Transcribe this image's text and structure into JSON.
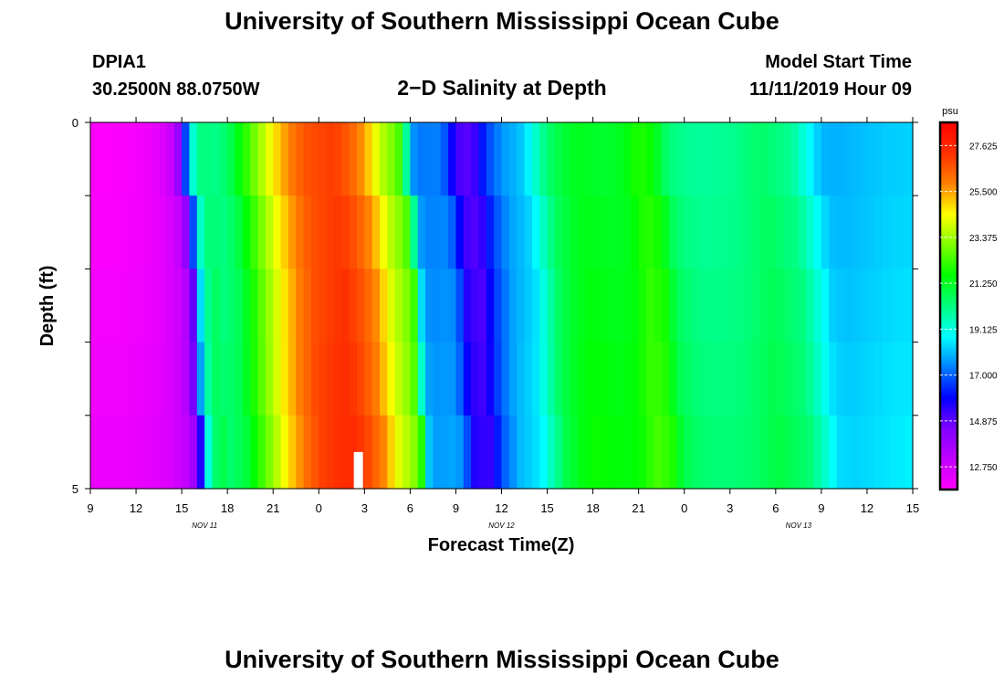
{
  "header": {
    "title": "University of Southern Mississippi Ocean Cube",
    "station_id": "DPIA1",
    "location": "30.2500N 88.0750W",
    "model_label": "Model Start Time",
    "model_time": "11/11/2019 Hour 09",
    "footer_title": "University of Southern Mississippi Ocean Cube"
  },
  "chart_data": {
    "type": "heatmap",
    "title": "2−D Salinity at Depth",
    "xlabel": "Forecast Time(Z)",
    "ylabel": "Depth (ft)",
    "unit": "psu",
    "x_start_hour": 9,
    "x_range_hours": [
      0,
      54
    ],
    "x_ticks": [
      {
        "h": 0,
        "label": "9"
      },
      {
        "h": 3,
        "label": "12"
      },
      {
        "h": 6,
        "label": "15"
      },
      {
        "h": 9,
        "label": "18"
      },
      {
        "h": 12,
        "label": "21"
      },
      {
        "h": 15,
        "label": "0"
      },
      {
        "h": 18,
        "label": "3"
      },
      {
        "h": 21,
        "label": "6"
      },
      {
        "h": 24,
        "label": "9"
      },
      {
        "h": 27,
        "label": "12"
      },
      {
        "h": 30,
        "label": "15"
      },
      {
        "h": 33,
        "label": "18"
      },
      {
        "h": 36,
        "label": "21"
      },
      {
        "h": 39,
        "label": "0"
      },
      {
        "h": 42,
        "label": "3"
      },
      {
        "h": 45,
        "label": "6"
      },
      {
        "h": 48,
        "label": "9"
      },
      {
        "h": 51,
        "label": "12"
      },
      {
        "h": 54,
        "label": "15"
      }
    ],
    "date_labels": [
      {
        "h": 7.5,
        "label": "NOV 11"
      },
      {
        "h": 27,
        "label": "NOV 12"
      },
      {
        "h": 46.5,
        "label": "NOV 13"
      }
    ],
    "y_range_ft": [
      0,
      5
    ],
    "y_tick_labels": [
      {
        "ft": 0,
        "label": "0"
      },
      {
        "ft": 5,
        "label": "5"
      }
    ],
    "y_minor_ticks": [
      1,
      2,
      3,
      4
    ],
    "colorbar": {
      "min": 11.7,
      "max": 28.7,
      "ticks": [
        27.625,
        25.5,
        23.375,
        21.25,
        19.125,
        17.0,
        14.875,
        12.75
      ],
      "tick_labels": [
        "27.625",
        "25.500",
        "23.375",
        "21.250",
        "19.125",
        "17.000",
        "14.875",
        "12.750"
      ],
      "colors": [
        "#ff00ff",
        "#c000ff",
        "#8000ff",
        "#0000ff",
        "#0080ff",
        "#00ffff",
        "#00ff80",
        "#00ff00",
        "#80ff00",
        "#ffff00",
        "#ff8000",
        "#ff3000",
        "#ff0000"
      ]
    },
    "depth_bands_ft": [
      0,
      1,
      2,
      3,
      4,
      5
    ],
    "profile_hours": [
      0,
      1,
      2,
      3,
      4,
      5,
      5.5,
      6,
      6.5,
      7,
      7.5,
      8,
      9,
      10,
      11,
      12,
      13,
      14,
      15,
      16,
      17,
      18,
      19,
      20,
      20.5,
      21,
      21.5,
      22,
      22.5,
      23,
      23.5,
      24,
      25,
      26,
      27,
      28,
      28.5,
      29,
      30,
      31,
      32,
      33,
      34,
      35,
      36,
      37,
      37.5,
      38,
      39,
      40,
      42,
      44,
      46,
      48,
      49,
      50,
      52,
      54
    ],
    "surface_profile": [
      11.7,
      11.7,
      11.8,
      11.9,
      12.1,
      12.6,
      13.2,
      14.8,
      18.6,
      20.0,
      20.4,
      20.0,
      20.5,
      21.8,
      23.2,
      24.6,
      25.8,
      26.6,
      26.9,
      27.1,
      26.5,
      25.5,
      23.8,
      22.8,
      22.0,
      17.8,
      17.3,
      17.3,
      17.4,
      17.3,
      16.5,
      15.2,
      14.9,
      16.6,
      17.6,
      18.0,
      18.3,
      19.0,
      20.4,
      21.0,
      21.3,
      21.2,
      21.1,
      21.3,
      22.0,
      21.6,
      20.8,
      20.3,
      20.0,
      19.9,
      20.0,
      20.5,
      20.0,
      18.0,
      17.9,
      18.0,
      18.2,
      18.3
    ],
    "depth_offsets": [
      0,
      0.1,
      0.2,
      0.3,
      0.4
    ],
    "depth_shift_hours": [
      0,
      0.5,
      0.8,
      0.9,
      1.2
    ],
    "missing_cell": {
      "h_start": 17.3,
      "h_end": 17.9,
      "ft_start": 4.5,
      "ft_end": 5
    }
  }
}
